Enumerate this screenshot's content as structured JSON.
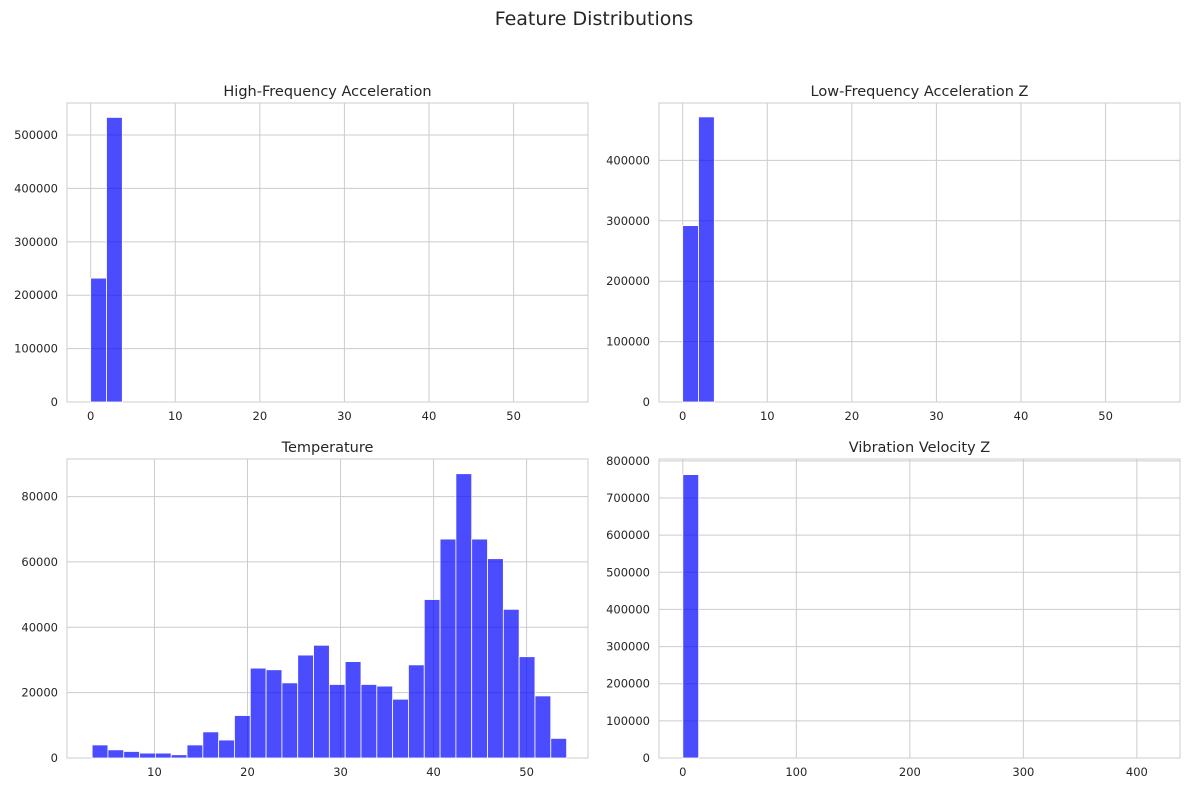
{
  "suptitle": "Feature Distributions",
  "style": {
    "bar_color": "#0000ff",
    "grid_color": "#cccccc",
    "text_color": "#262626"
  },
  "chart_data": [
    {
      "type": "bar",
      "title": "High-Frequency Acceleration",
      "xlabel": "",
      "ylabel": "",
      "grid": true,
      "xlim": [
        -2.8,
        58.8
      ],
      "ylim": [
        0,
        560000
      ],
      "xticks": [
        0,
        10,
        20,
        30,
        40,
        50
      ],
      "yticks": [
        0,
        100000,
        200000,
        300000,
        400000,
        500000
      ],
      "bin_width": 1.87,
      "bins": [
        {
          "x": 0,
          "value": 232000
        },
        {
          "x": 1.87,
          "value": 533000
        }
      ]
    },
    {
      "type": "bar",
      "title": "Low-Frequency Acceleration Z",
      "xlabel": "",
      "ylabel": "",
      "grid": true,
      "xlim": [
        -2.8,
        58.8
      ],
      "ylim": [
        0,
        495000
      ],
      "xticks": [
        0,
        10,
        20,
        30,
        40,
        50
      ],
      "yticks": [
        0,
        100000,
        200000,
        300000,
        400000
      ],
      "bin_width": 1.87,
      "bins": [
        {
          "x": 0,
          "value": 292000
        },
        {
          "x": 1.87,
          "value": 472000
        }
      ]
    },
    {
      "type": "bar",
      "title": "Temperature",
      "xlabel": "",
      "ylabel": "",
      "grid": true,
      "xlim": [
        0.6,
        56.6
      ],
      "ylim": [
        0,
        91500
      ],
      "xticks": [
        10,
        20,
        30,
        40,
        50
      ],
      "yticks": [
        0,
        20000,
        40000,
        60000,
        80000
      ],
      "bin_width": 1.7,
      "bins": [
        {
          "x": 3.3,
          "value": 4000
        },
        {
          "x": 5.0,
          "value": 2500
        },
        {
          "x": 6.7,
          "value": 2000
        },
        {
          "x": 8.4,
          "value": 1500
        },
        {
          "x": 10.1,
          "value": 1500
        },
        {
          "x": 11.8,
          "value": 1000
        },
        {
          "x": 13.5,
          "value": 4000
        },
        {
          "x": 15.2,
          "value": 8000
        },
        {
          "x": 16.9,
          "value": 5500
        },
        {
          "x": 18.6,
          "value": 13000
        },
        {
          "x": 20.3,
          "value": 27500
        },
        {
          "x": 22.0,
          "value": 27000
        },
        {
          "x": 23.7,
          "value": 23000
        },
        {
          "x": 25.4,
          "value": 31500
        },
        {
          "x": 27.1,
          "value": 34500
        },
        {
          "x": 28.8,
          "value": 22500
        },
        {
          "x": 30.5,
          "value": 29500
        },
        {
          "x": 32.2,
          "value": 22500
        },
        {
          "x": 33.9,
          "value": 22000
        },
        {
          "x": 35.6,
          "value": 18000
        },
        {
          "x": 37.3,
          "value": 28500
        },
        {
          "x": 39.0,
          "value": 48500
        },
        {
          "x": 40.7,
          "value": 67000
        },
        {
          "x": 42.4,
          "value": 87000
        },
        {
          "x": 44.1,
          "value": 67000
        },
        {
          "x": 45.8,
          "value": 61000
        },
        {
          "x": 47.5,
          "value": 45500
        },
        {
          "x": 49.2,
          "value": 31000
        },
        {
          "x": 50.9,
          "value": 19000
        },
        {
          "x": 52.6,
          "value": 6000
        }
      ]
    },
    {
      "type": "bar",
      "title": "Vibration Velocity Z",
      "xlabel": "",
      "ylabel": "",
      "grid": true,
      "xlim": [
        -21,
        438
      ],
      "ylim": [
        0,
        805000
      ],
      "xticks": [
        0,
        100,
        200,
        300,
        400
      ],
      "yticks": [
        0,
        100000,
        200000,
        300000,
        400000,
        500000,
        600000,
        700000,
        800000
      ],
      "bin_width": 13.9,
      "bins": [
        {
          "x": 0,
          "value": 763000
        }
      ]
    }
  ]
}
